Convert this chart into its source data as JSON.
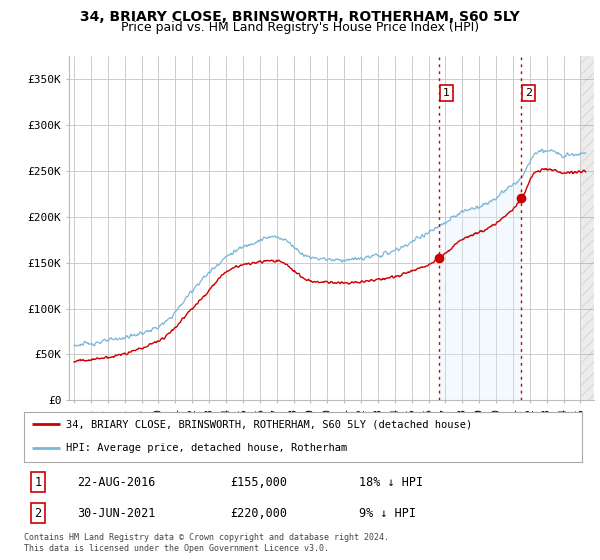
{
  "title": "34, BRIARY CLOSE, BRINSWORTH, ROTHERHAM, S60 5LY",
  "subtitle": "Price paid vs. HM Land Registry's House Price Index (HPI)",
  "yticks": [
    0,
    50000,
    100000,
    150000,
    200000,
    250000,
    300000,
    350000
  ],
  "ytick_labels": [
    "£0",
    "£50K",
    "£100K",
    "£150K",
    "£200K",
    "£250K",
    "£300K",
    "£350K"
  ],
  "xlim_start": 1994.7,
  "xlim_end": 2025.8,
  "ylim": [
    0,
    375000
  ],
  "hpi_color": "#7ab8d9",
  "hpi_fill_color": "#daeef7",
  "price_color": "#cc0000",
  "vline_color": "#cc0000",
  "marker1_x": 2016.64,
  "marker1_y": 155000,
  "marker2_x": 2021.5,
  "marker2_y": 220000,
  "legend_line1": "34, BRIARY CLOSE, BRINSWORTH, ROTHERHAM, S60 5LY (detached house)",
  "legend_line2": "HPI: Average price, detached house, Rotherham",
  "table_row1": [
    "1",
    "22-AUG-2016",
    "£155,000",
    "18% ↓ HPI"
  ],
  "table_row2": [
    "2",
    "30-JUN-2021",
    "£220,000",
    "9% ↓ HPI"
  ],
  "footnote": "Contains HM Land Registry data © Crown copyright and database right 2024.\nThis data is licensed under the Open Government Licence v3.0.",
  "background_color": "#ffffff",
  "grid_color": "#cccccc"
}
